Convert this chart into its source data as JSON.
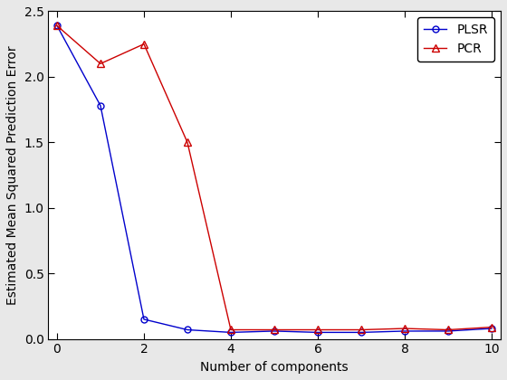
{
  "plsr_x": [
    0,
    1,
    2,
    3,
    4,
    5,
    6,
    7,
    8,
    9,
    10
  ],
  "plsr_y": [
    2.39,
    1.78,
    0.15,
    0.07,
    0.05,
    0.06,
    0.05,
    0.05,
    0.06,
    0.06,
    0.08
  ],
  "pcr_x": [
    0,
    1,
    2,
    3,
    4,
    5,
    6,
    7,
    8,
    9,
    10
  ],
  "pcr_y": [
    2.39,
    2.1,
    2.25,
    1.5,
    0.07,
    0.07,
    0.07,
    0.07,
    0.08,
    0.07,
    0.09
  ],
  "plsr_color": "#0000cc",
  "pcr_color": "#cc0000",
  "xlabel": "Number of components",
  "ylabel": "Estimated Mean Squared Prediction Error",
  "xlim": [
    -0.2,
    10.2
  ],
  "ylim": [
    0,
    2.5
  ],
  "xticks": [
    0,
    2,
    4,
    6,
    8,
    10
  ],
  "yticks": [
    0,
    0.5,
    1.0,
    1.5,
    2.0,
    2.5
  ],
  "legend_labels": [
    "PLSR",
    "PCR"
  ],
  "background_color": "#ffffff",
  "fig_background": "#e8e8e8"
}
